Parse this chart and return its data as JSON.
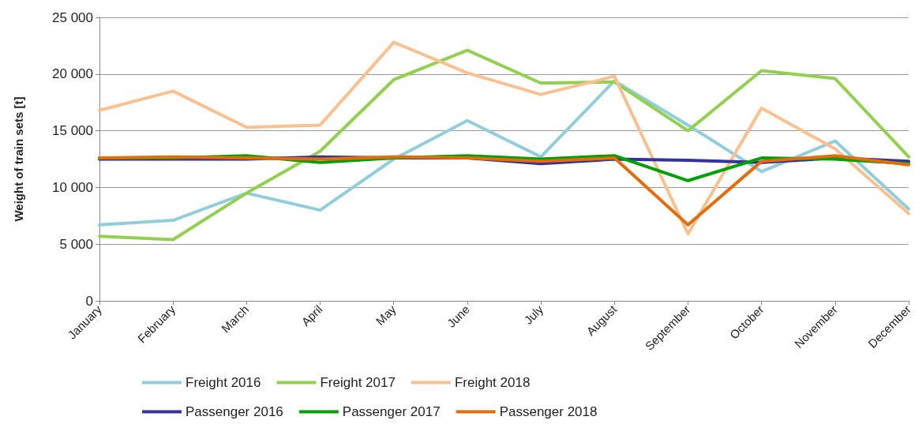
{
  "chart_data": {
    "type": "line",
    "ylabel": "Weight of train sets [t]",
    "categories": [
      "January",
      "February",
      "March",
      "April",
      "May",
      "June",
      "July",
      "August",
      "September",
      "October",
      "November",
      "December"
    ],
    "series": [
      {
        "name": "Freight 2016",
        "color": "#92cddc",
        "values": [
          6700,
          7100,
          9500,
          8000,
          12500,
          15900,
          12700,
          19400,
          15500,
          11400,
          14100,
          8100
        ]
      },
      {
        "name": "Freight 2017",
        "color": "#92d050",
        "values": [
          5700,
          5400,
          9500,
          13200,
          19500,
          22100,
          19200,
          19300,
          15000,
          20300,
          19600,
          12700
        ]
      },
      {
        "name": "Freight 2018",
        "color": "#fac090",
        "values": [
          16800,
          18500,
          15300,
          15500,
          22800,
          20100,
          18200,
          19800,
          5900,
          17000,
          13400,
          7700
        ]
      },
      {
        "name": "Passenger 2016",
        "color": "#3333a0",
        "values": [
          12500,
          12500,
          12500,
          12700,
          12600,
          12600,
          12100,
          12500,
          12400,
          12200,
          12600,
          12300
        ]
      },
      {
        "name": "Passenger 2017",
        "color": "#00a000",
        "values": [
          12600,
          12600,
          12800,
          12200,
          12600,
          12800,
          12500,
          12800,
          10600,
          12600,
          12500,
          12100
        ]
      },
      {
        "name": "Passenger 2018",
        "color": "#e46c0a",
        "values": [
          12600,
          12700,
          12600,
          12500,
          12700,
          12600,
          12300,
          12600,
          6700,
          12300,
          12800,
          12000
        ]
      }
    ],
    "ylim": [
      0,
      25000
    ],
    "yticks": [
      0,
      {
        "value": 5000,
        "label": "5 000"
      },
      {
        "value": 10000,
        "label": "10 000"
      },
      {
        "value": 15000,
        "label": "15 000"
      },
      {
        "value": 20000,
        "label": "20 000"
      },
      {
        "value": 25000,
        "label": "25 000"
      }
    ],
    "grid": "y",
    "legend": "bottom",
    "marker": "none",
    "line_style": "solid"
  }
}
